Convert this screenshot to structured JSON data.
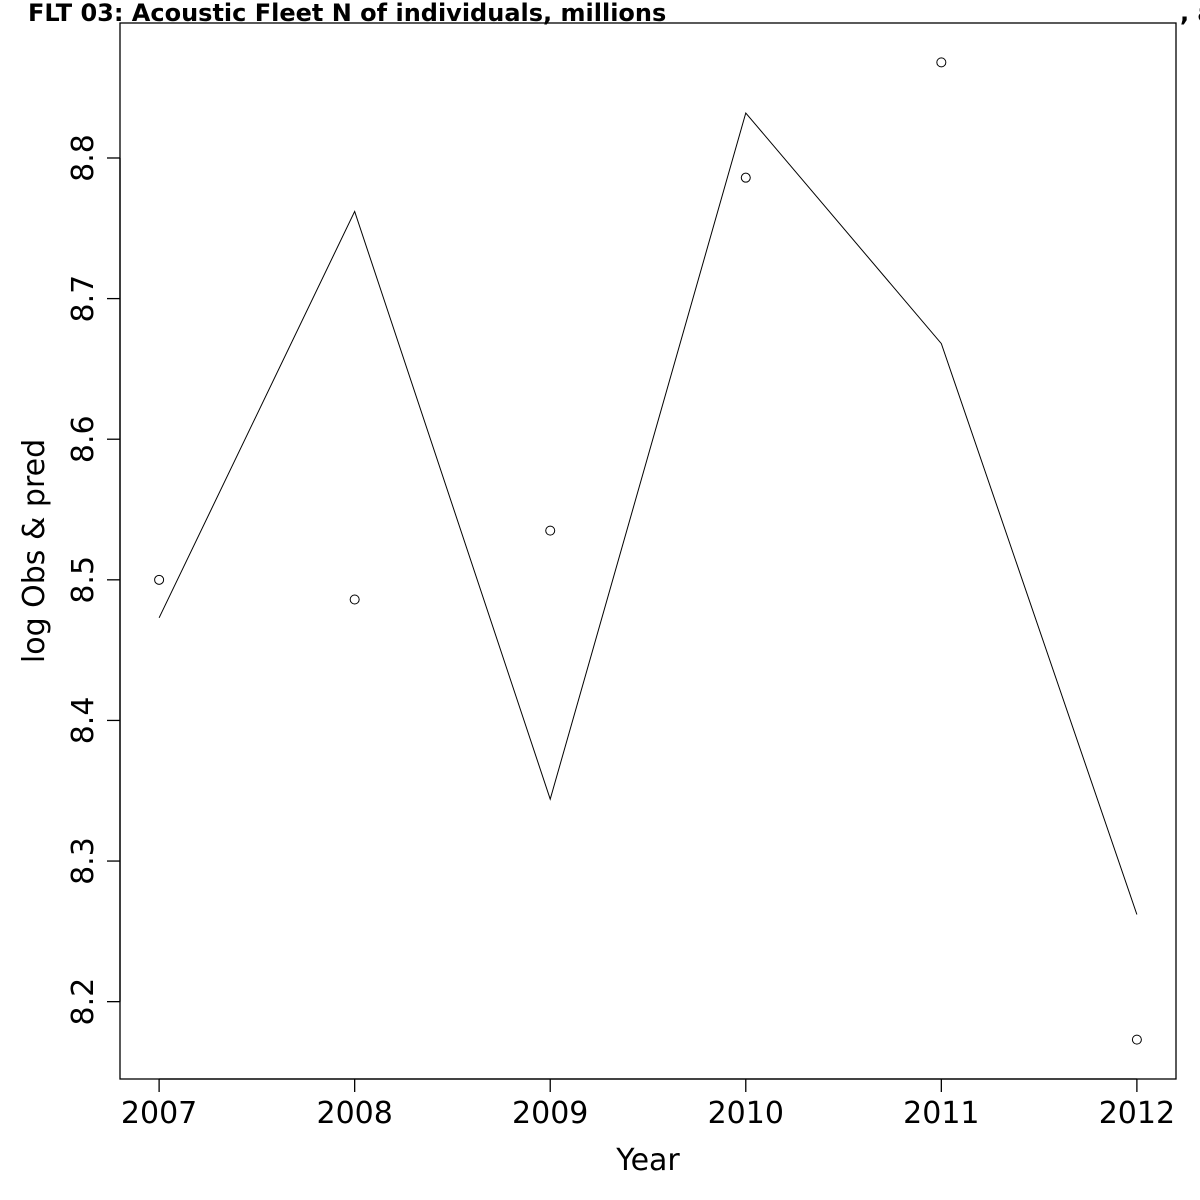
{
  "title": "FLT 03: Acoustic Fleet   N of individuals, millions",
  "title_suffix": ", a",
  "chart_data": {
    "type": "line",
    "title": "FLT 03: Acoustic Fleet   N of individuals, millions",
    "xlabel": "Year",
    "ylabel": "log Obs & pred",
    "x": [
      2007,
      2008,
      2009,
      2010,
      2011,
      2012
    ],
    "xlim": [
      2006.8,
      2012.2
    ],
    "ylim": [
      2.145,
      2.896
    ],
    "xticks": [
      "2007",
      "2008",
      "2009",
      "2010",
      "2011",
      "2012"
    ],
    "yticks": [
      {
        "value": 8.2,
        "label": "8.2"
      },
      {
        "value": 8.3,
        "label": "8.3"
      },
      {
        "value": 8.4,
        "label": "8.4"
      },
      {
        "value": 8.5,
        "label": "8.5"
      },
      {
        "value": 8.6,
        "label": "8.6"
      },
      {
        "value": 8.7,
        "label": "8.7"
      },
      {
        "value": 8.8,
        "label": "8.8"
      }
    ],
    "series": [
      {
        "kind": "points",
        "marker": "open-circle",
        "values": [
          8.5,
          8.486,
          8.535,
          8.786,
          8.868,
          8.173
        ]
      },
      {
        "kind": "line",
        "values": [
          8.473,
          8.762,
          8.344,
          8.832,
          8.668,
          8.262
        ]
      }
    ],
    "grid": false,
    "legend": "none"
  }
}
